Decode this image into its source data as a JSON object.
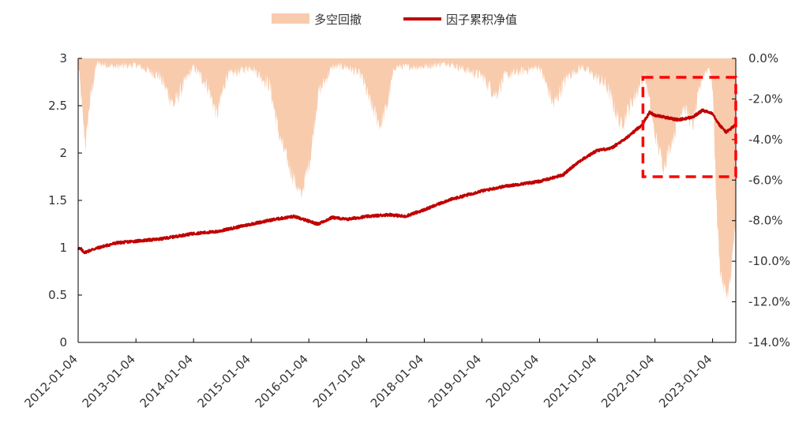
{
  "chart_data": {
    "type": "line",
    "title": "",
    "legend": {
      "position": "top-center",
      "drawdown_label": "多空回撤",
      "nav_label": "因子累积净值"
    },
    "x_axis": {
      "ticks": [
        "2012-01-04",
        "2013-01-04",
        "2014-01-04",
        "2015-01-04",
        "2016-01-04",
        "2017-01-04",
        "2018-01-04",
        "2019-01-04",
        "2020-01-04",
        "2021-01-04",
        "2022-01-04",
        "2023-01-04"
      ],
      "range": [
        "2012-01-04",
        "2023-05-31"
      ],
      "label_rotation": -45
    },
    "y_left": {
      "ticks": [
        "0",
        "0.5",
        "1",
        "1.5",
        "2",
        "2.5",
        "3"
      ],
      "ylim": [
        0,
        3
      ]
    },
    "y_right": {
      "ticks": [
        "0.0%",
        "-2.0%",
        "-4.0%",
        "-6.0%",
        "-8.0%",
        "-10.0%",
        "-12.0%",
        "-14.0%"
      ],
      "ylim": [
        -14,
        0
      ],
      "unit": "%"
    },
    "series": [
      {
        "name": "因子累积净值",
        "type": "line",
        "axis": "left",
        "color": "#c00000",
        "points": [
          [
            "2012-01-04",
            1.0
          ],
          [
            "2012-02-15",
            0.95
          ],
          [
            "2012-04-01",
            0.98
          ],
          [
            "2012-06-01",
            1.01
          ],
          [
            "2012-09-01",
            1.05
          ],
          [
            "2013-01-04",
            1.07
          ],
          [
            "2013-06-01",
            1.09
          ],
          [
            "2014-01-04",
            1.15
          ],
          [
            "2014-06-01",
            1.17
          ],
          [
            "2015-01-04",
            1.25
          ],
          [
            "2015-06-01",
            1.3
          ],
          [
            "2015-10-01",
            1.33
          ],
          [
            "2016-01-04",
            1.28
          ],
          [
            "2016-03-01",
            1.25
          ],
          [
            "2016-06-01",
            1.32
          ],
          [
            "2016-09-01",
            1.3
          ],
          [
            "2017-01-04",
            1.33
          ],
          [
            "2017-06-01",
            1.35
          ],
          [
            "2017-09-01",
            1.33
          ],
          [
            "2018-01-04",
            1.4
          ],
          [
            "2018-06-01",
            1.5
          ],
          [
            "2019-01-04",
            1.6
          ],
          [
            "2019-06-01",
            1.65
          ],
          [
            "2020-01-04",
            1.7
          ],
          [
            "2020-06-01",
            1.77
          ],
          [
            "2020-09-01",
            1.9
          ],
          [
            "2021-01-04",
            2.03
          ],
          [
            "2021-04-01",
            2.05
          ],
          [
            "2021-07-01",
            2.15
          ],
          [
            "2021-10-15",
            2.3
          ],
          [
            "2021-12-01",
            2.43
          ],
          [
            "2022-01-04",
            2.4
          ],
          [
            "2022-06-01",
            2.35
          ],
          [
            "2022-09-01",
            2.38
          ],
          [
            "2022-11-01",
            2.45
          ],
          [
            "2023-01-04",
            2.42
          ],
          [
            "2023-02-15",
            2.3
          ],
          [
            "2023-04-01",
            2.22
          ],
          [
            "2023-05-31",
            2.3
          ]
        ]
      },
      {
        "name": "多空回撤",
        "type": "area",
        "axis": "right",
        "color": "#f8cbad",
        "points": [
          [
            "2012-01-04",
            -0.2
          ],
          [
            "2012-02-01",
            -3.0
          ],
          [
            "2012-02-20",
            -4.5
          ],
          [
            "2012-03-15",
            -2.5
          ],
          [
            "2012-05-01",
            -0.3
          ],
          [
            "2012-09-01",
            -0.5
          ],
          [
            "2013-01-04",
            -0.4
          ],
          [
            "2013-06-01",
            -1.0
          ],
          [
            "2013-09-01",
            -2.5
          ],
          [
            "2013-12-01",
            -1.0
          ],
          [
            "2014-01-04",
            -0.5
          ],
          [
            "2014-04-01",
            -1.5
          ],
          [
            "2014-06-01",
            -3.0
          ],
          [
            "2014-08-01",
            -1.0
          ],
          [
            "2015-01-04",
            -0.5
          ],
          [
            "2015-05-01",
            -1.5
          ],
          [
            "2015-07-01",
            -4.0
          ],
          [
            "2015-09-01",
            -5.5
          ],
          [
            "2015-11-15",
            -7.0
          ],
          [
            "2016-01-15",
            -5.0
          ],
          [
            "2016-03-01",
            -2.0
          ],
          [
            "2016-06-01",
            -0.5
          ],
          [
            "2016-09-01",
            -0.5
          ],
          [
            "2016-12-01",
            -1.0
          ],
          [
            "2017-02-01",
            -2.5
          ],
          [
            "2017-04-01",
            -3.5
          ],
          [
            "2017-05-15",
            -2.5
          ],
          [
            "2017-07-01",
            -0.5
          ],
          [
            "2018-01-04",
            -0.5
          ],
          [
            "2018-06-01",
            -0.3
          ],
          [
            "2019-01-04",
            -1.0
          ],
          [
            "2019-04-01",
            -2.0
          ],
          [
            "2019-06-01",
            -1.0
          ],
          [
            "2020-01-04",
            -0.5
          ],
          [
            "2020-04-01",
            -2.5
          ],
          [
            "2020-07-01",
            -1.0
          ],
          [
            "2020-10-01",
            -0.5
          ],
          [
            "2021-03-01",
            -1.5
          ],
          [
            "2021-06-01",
            -3.5
          ],
          [
            "2021-09-01",
            -2.0
          ],
          [
            "2021-11-01",
            -1.0
          ],
          [
            "2022-01-04",
            -4.0
          ],
          [
            "2022-03-01",
            -5.5
          ],
          [
            "2022-05-01",
            -4.0
          ],
          [
            "2022-07-01",
            -2.5
          ],
          [
            "2022-09-01",
            -3.5
          ],
          [
            "2022-11-01",
            -1.0
          ],
          [
            "2022-12-15",
            -0.5
          ],
          [
            "2023-01-04",
            -1.5
          ],
          [
            "2023-02-01",
            -8.0
          ],
          [
            "2023-02-20",
            -10.5
          ],
          [
            "2023-03-15",
            -11.5
          ],
          [
            "2023-04-10",
            -11.8
          ],
          [
            "2023-05-01",
            -11.0
          ],
          [
            "2023-05-20",
            -9.0
          ],
          [
            "2023-05-31",
            -8.0
          ]
        ]
      }
    ],
    "annotation": {
      "type": "dashed-box",
      "color": "#ff0000",
      "x_range": [
        "2021-10-20",
        "2023-05-31"
      ],
      "y_range_left": [
        1.75,
        2.8
      ]
    }
  }
}
